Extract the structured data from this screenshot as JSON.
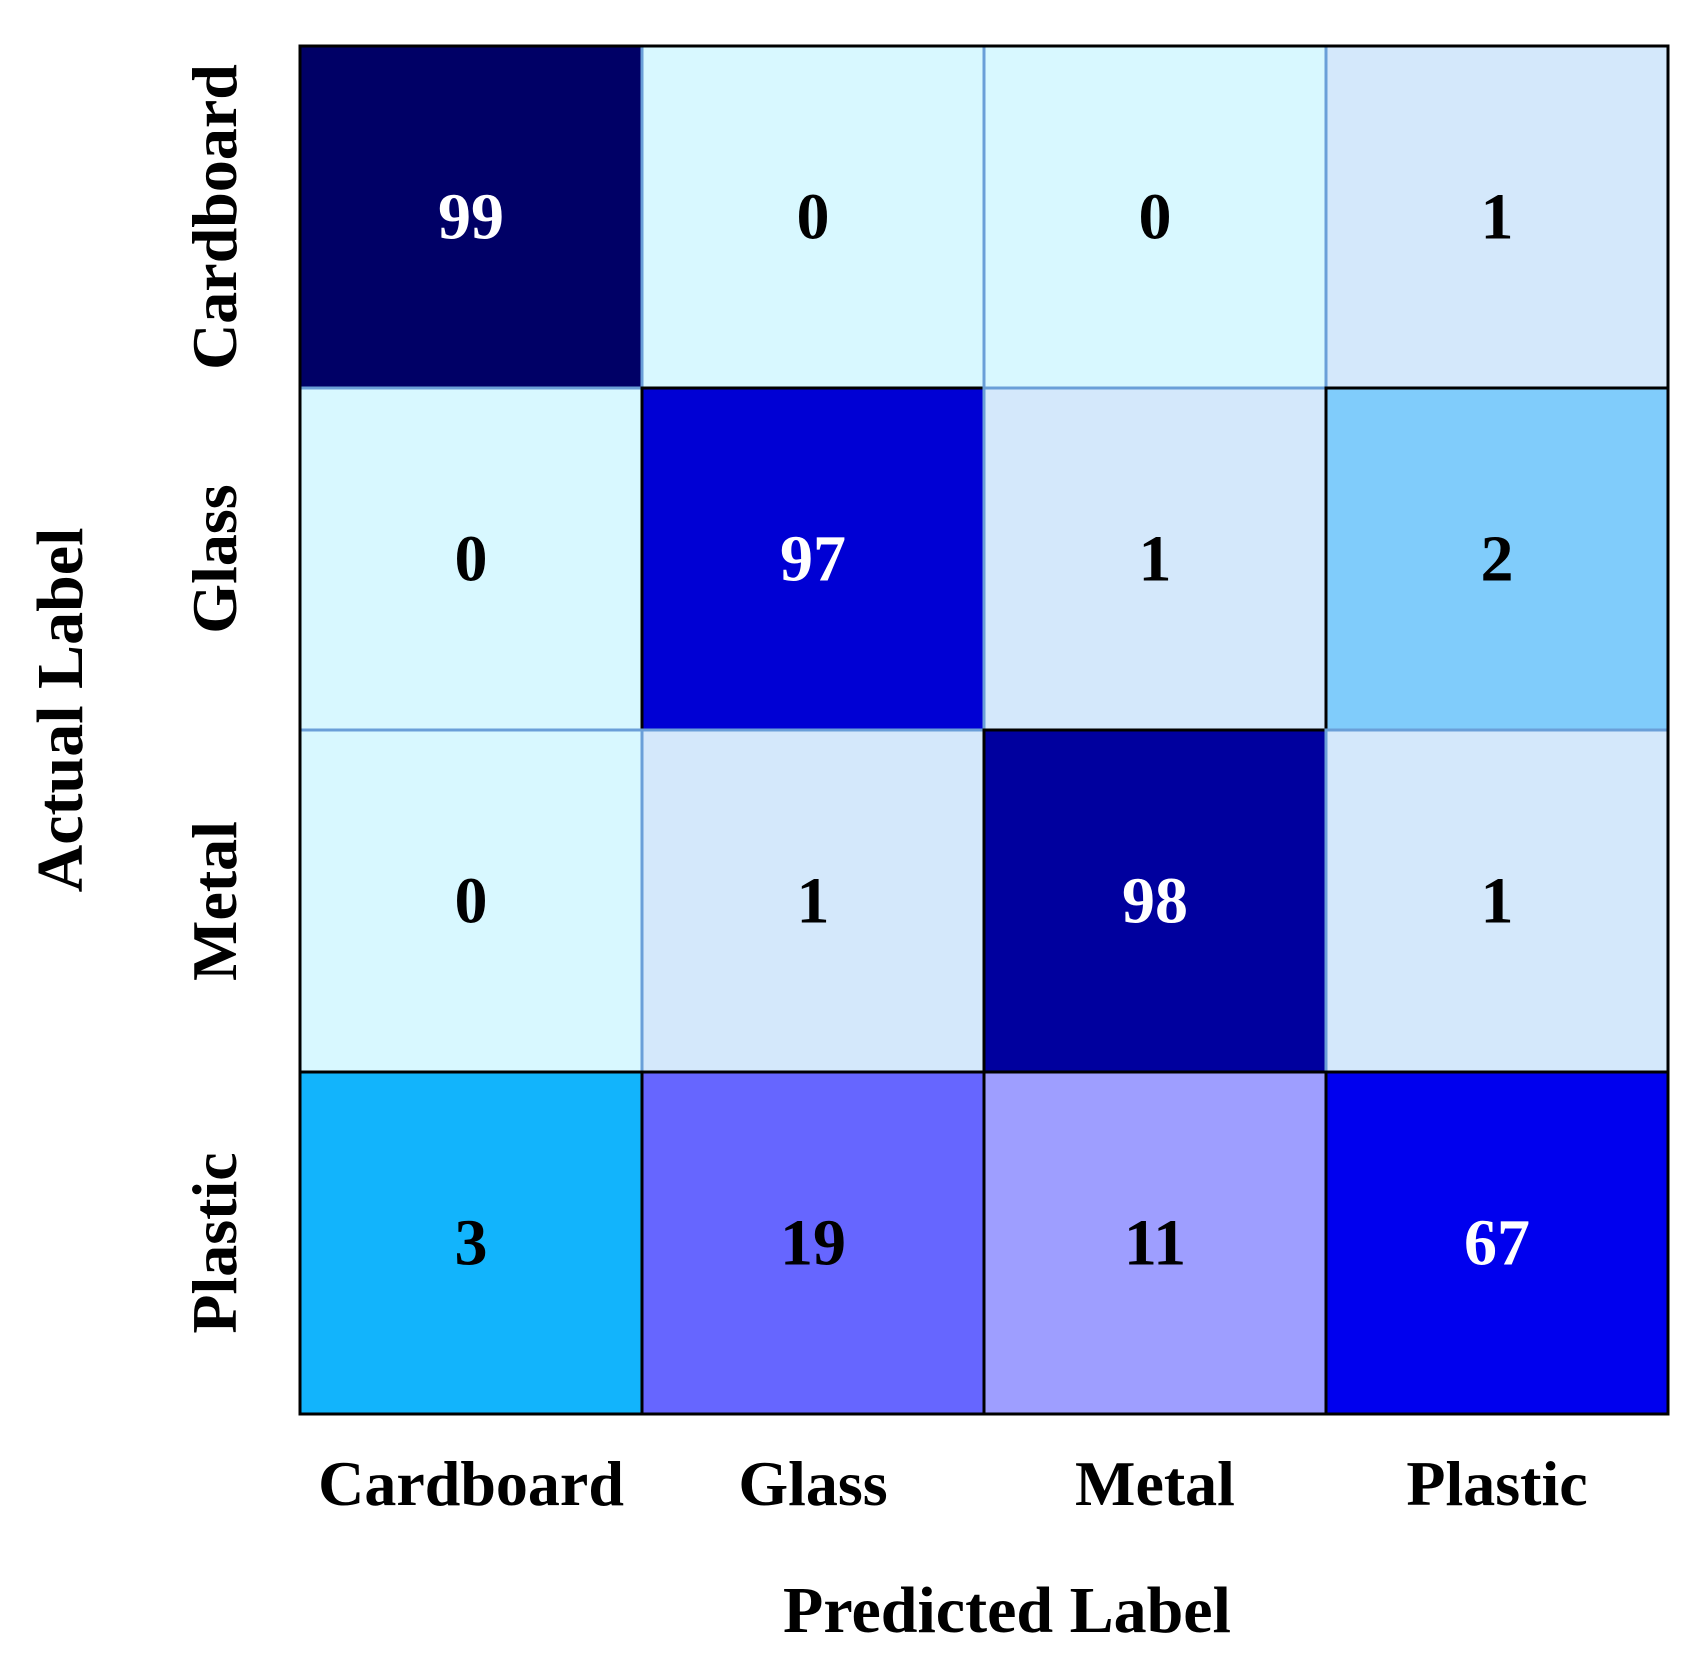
{
  "chart_data": {
    "type": "heatmap",
    "title": "",
    "xlabel": "Predicted Label",
    "ylabel": "Actual Label",
    "x_categories": [
      "Cardboard",
      "Glass",
      "Metal",
      "Plastic"
    ],
    "y_categories": [
      "Cardboard",
      "Glass",
      "Metal",
      "Plastic"
    ],
    "matrix": [
      [
        99,
        0,
        0,
        1
      ],
      [
        0,
        97,
        1,
        2
      ],
      [
        0,
        1,
        98,
        1
      ],
      [
        3,
        19,
        11,
        67
      ]
    ],
    "cell_colors": [
      [
        "#000066",
        "#d8f8ff",
        "#d8f8ff",
        "#d4e8fb"
      ],
      [
        "#d8f8ff",
        "#0000d4",
        "#d4e8fb",
        "#80ccfb"
      ],
      [
        "#d8f8ff",
        "#d4e8fb",
        "#00009e",
        "#d4e8fb"
      ],
      [
        "#12b4fc",
        "#6666ff",
        "#9e9eff",
        "#0000ee"
      ]
    ],
    "text_colors": [
      [
        "#ffffff",
        "#000000",
        "#000000",
        "#000000"
      ],
      [
        "#000000",
        "#ffffff",
        "#000000",
        "#000000"
      ],
      [
        "#000000",
        "#000000",
        "#ffffff",
        "#000000"
      ],
      [
        "#000000",
        "#000000",
        "#000000",
        "#ffffff"
      ]
    ],
    "light_border_color": "#6a9fd8",
    "dark_border_color": "#000000",
    "legend": "none",
    "grid": false
  }
}
